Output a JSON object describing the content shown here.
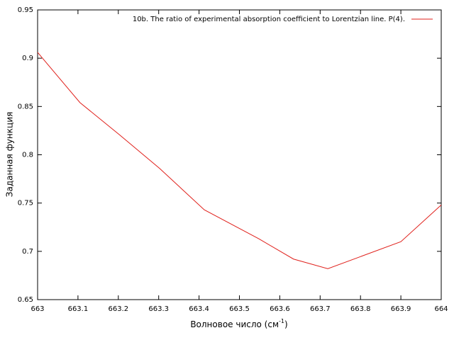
{
  "chart_data": {
    "type": "line",
    "xlabel": "Волновое число (см",
    "xlabel_sup": "-1",
    "xlabel_end": ")",
    "ylabel": "Заданная функция",
    "x": [
      663,
      663.105,
      663.202,
      663.302,
      663.413,
      663.548,
      663.634,
      663.719,
      663.803,
      663.9,
      664
    ],
    "series": [
      {
        "name": "10b. The ratio of experimental absorption coefficient to Lorentzian line. P(4).",
        "color": "#e0201b",
        "values": [
          0.906,
          0.854,
          0.821,
          0.786,
          0.743,
          0.713,
          0.692,
          0.682,
          0.695,
          0.71,
          0.748
        ]
      }
    ],
    "xlim": [
      663,
      664
    ],
    "xticks": [
      663,
      663.1,
      663.2,
      663.3,
      663.4,
      663.5,
      663.6,
      663.7,
      663.8,
      663.9,
      664
    ],
    "ylim": [
      0.65,
      0.95
    ],
    "yticks": [
      0.65,
      0.7,
      0.75,
      0.8,
      0.85,
      0.9,
      0.95
    ],
    "legend": "top-right"
  }
}
